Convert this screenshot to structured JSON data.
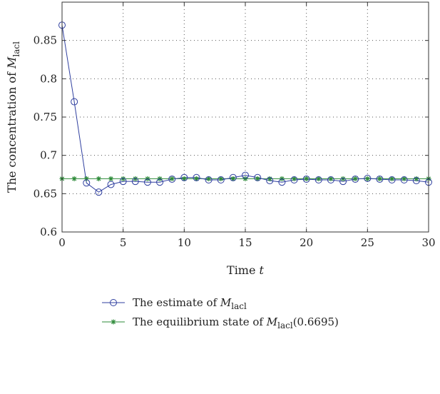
{
  "chart_data": {
    "type": "line",
    "title": "",
    "xlabel": "Time",
    "xlabel_var": "t",
    "ylabel": "The concentration of",
    "ylabel_var": "M",
    "ylabel_sub": "lacl",
    "xlim": [
      0,
      30
    ],
    "ylim": [
      0.6,
      0.9
    ],
    "x_ticks": [
      0,
      5,
      10,
      15,
      20,
      25,
      30
    ],
    "y_ticks": [
      0.6,
      0.65,
      0.7,
      0.75,
      0.8,
      0.85
    ],
    "grid": true,
    "legend_position": "bottom",
    "x": [
      0,
      1,
      2,
      3,
      4,
      5,
      6,
      7,
      8,
      9,
      10,
      11,
      12,
      13,
      14,
      15,
      16,
      17,
      18,
      19,
      20,
      21,
      22,
      23,
      24,
      25,
      26,
      27,
      28,
      29,
      30
    ],
    "series": [
      {
        "name_prefix": "The estimate of",
        "name_var": "M",
        "name_sub": "lacl",
        "name_suffix": "",
        "color": "#2f3f9f",
        "marker": "circle",
        "values": [
          0.87,
          0.77,
          0.664,
          0.652,
          0.662,
          0.666,
          0.666,
          0.665,
          0.665,
          0.669,
          0.671,
          0.671,
          0.668,
          0.668,
          0.671,
          0.674,
          0.671,
          0.667,
          0.665,
          0.668,
          0.669,
          0.668,
          0.668,
          0.666,
          0.669,
          0.67,
          0.669,
          0.668,
          0.668,
          0.667,
          0.665
        ]
      },
      {
        "name_prefix": "The equilibrium state of",
        "name_var": "M",
        "name_sub": "lacl",
        "name_suffix": "(0.6695)",
        "color": "#2e8b3a",
        "marker": "asterisk",
        "values": [
          0.6695,
          0.6695,
          0.6695,
          0.6695,
          0.6695,
          0.6695,
          0.6695,
          0.6695,
          0.6695,
          0.6695,
          0.6695,
          0.6695,
          0.6695,
          0.6695,
          0.6695,
          0.6695,
          0.6695,
          0.6695,
          0.6695,
          0.6695,
          0.6695,
          0.6695,
          0.6695,
          0.6695,
          0.6695,
          0.6695,
          0.6695,
          0.6695,
          0.6695,
          0.6695,
          0.6695
        ]
      }
    ]
  }
}
